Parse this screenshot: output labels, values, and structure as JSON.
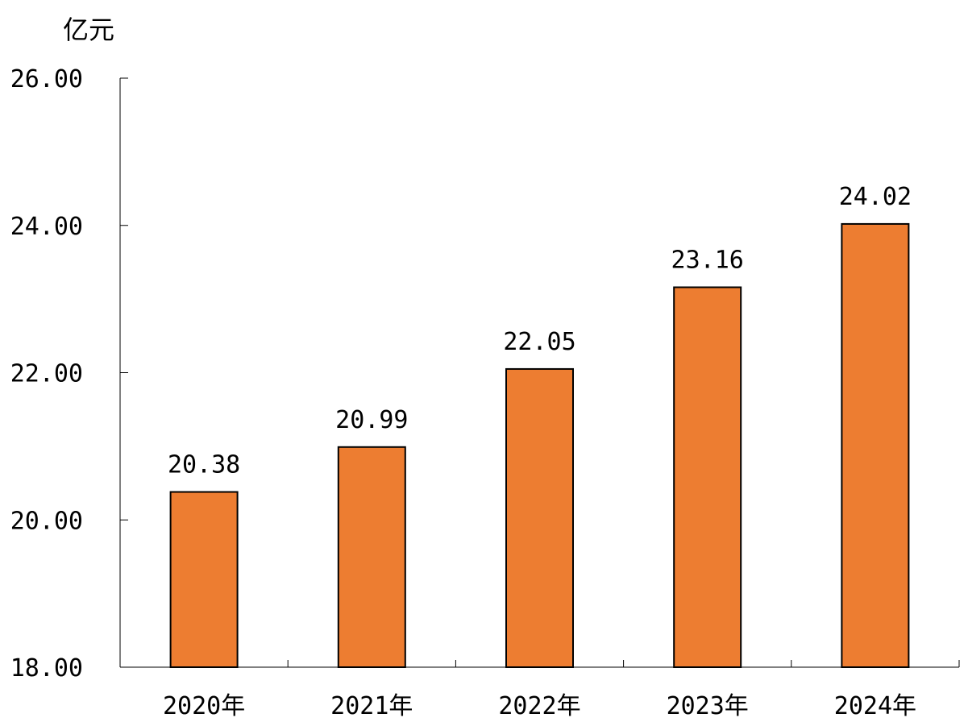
{
  "chart_data": {
    "type": "bar",
    "unit_label": "亿元",
    "categories": [
      "2020年",
      "2021年",
      "2022年",
      "2023年",
      "2024年"
    ],
    "values": [
      20.38,
      20.99,
      22.05,
      23.16,
      24.02
    ],
    "data_labels": [
      "20.38",
      "20.99",
      "22.05",
      "23.16",
      "24.02"
    ],
    "ylim": [
      18,
      26
    ],
    "yticks": [
      18,
      20,
      22,
      24,
      26
    ],
    "ytick_labels": [
      "18.00",
      "20.00",
      "22.00",
      "24.00",
      "26.00"
    ],
    "grid": false,
    "legend": "none",
    "colors": {
      "bar_fill": "#ED7D31",
      "bar_stroke": "#000000",
      "axis": "#000000"
    }
  }
}
